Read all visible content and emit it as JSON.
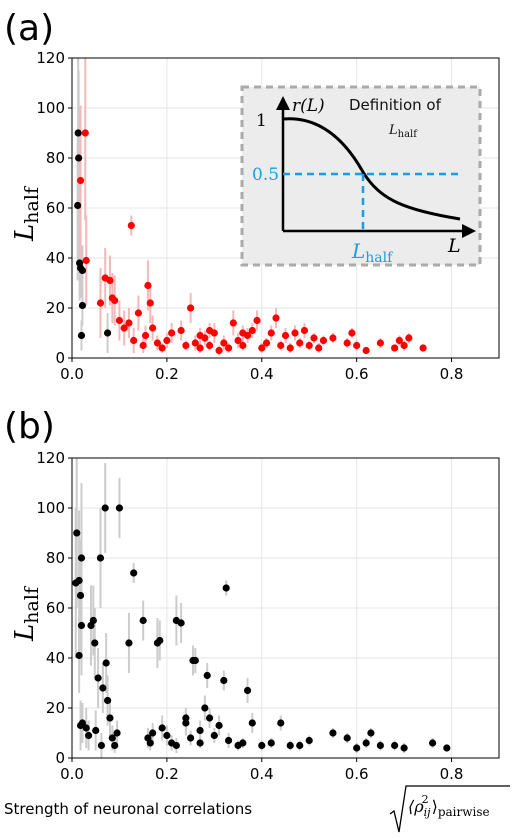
{
  "chart_data": [
    {
      "type": "scatter",
      "panel_label": "(a)",
      "xlim": [
        0,
        0.9
      ],
      "ylim": [
        0,
        120
      ],
      "xticks": [
        "0.0",
        "0.2",
        "0.4",
        "0.6",
        "0.8"
      ],
      "yticks": [
        "0",
        "20",
        "40",
        "60",
        "80",
        "100",
        "120"
      ],
      "ylabel_main": "L",
      "ylabel_sub": "half",
      "grid": true,
      "colors": {
        "red": "#ff0000",
        "black": "#000000",
        "err_red": "#f4b8b8",
        "err_black": "#cccccc"
      },
      "points_black": [
        {
          "x": 0.013,
          "y": 90,
          "e": 30
        },
        {
          "x": 0.014,
          "y": 80,
          "e": 35
        },
        {
          "x": 0.012,
          "y": 61,
          "e": 30
        },
        {
          "x": 0.016,
          "y": 38,
          "e": 15
        },
        {
          "x": 0.018,
          "y": 36,
          "e": 12
        },
        {
          "x": 0.022,
          "y": 35,
          "e": 10
        },
        {
          "x": 0.022,
          "y": 21,
          "e": 8
        },
        {
          "x": 0.02,
          "y": 9,
          "e": 6
        },
        {
          "x": 0.075,
          "y": 10,
          "e": 8
        }
      ],
      "points_red": [
        {
          "x": 0.028,
          "y": 90,
          "e": 35
        },
        {
          "x": 0.018,
          "y": 71,
          "e": 30
        },
        {
          "x": 0.03,
          "y": 39,
          "e": 18
        },
        {
          "x": 0.06,
          "y": 22,
          "e": 14
        },
        {
          "x": 0.07,
          "y": 32,
          "e": 12
        },
        {
          "x": 0.08,
          "y": 31,
          "e": 10
        },
        {
          "x": 0.085,
          "y": 24,
          "e": 10
        },
        {
          "x": 0.09,
          "y": 23,
          "e": 10
        },
        {
          "x": 0.1,
          "y": 15,
          "e": 8
        },
        {
          "x": 0.11,
          "y": 12,
          "e": 7
        },
        {
          "x": 0.12,
          "y": 14,
          "e": 6
        },
        {
          "x": 0.125,
          "y": 53,
          "e": 4
        },
        {
          "x": 0.13,
          "y": 7,
          "e": 5
        },
        {
          "x": 0.14,
          "y": 18,
          "e": 7
        },
        {
          "x": 0.15,
          "y": 5,
          "e": 3
        },
        {
          "x": 0.155,
          "y": 9,
          "e": 4
        },
        {
          "x": 0.16,
          "y": 29,
          "e": 10
        },
        {
          "x": 0.165,
          "y": 22,
          "e": 8
        },
        {
          "x": 0.17,
          "y": 12,
          "e": 5
        },
        {
          "x": 0.18,
          "y": 6,
          "e": 3
        },
        {
          "x": 0.19,
          "y": 4,
          "e": 2
        },
        {
          "x": 0.2,
          "y": 7,
          "e": 3
        },
        {
          "x": 0.21,
          "y": 10,
          "e": 4
        },
        {
          "x": 0.23,
          "y": 11,
          "e": 4
        },
        {
          "x": 0.24,
          "y": 5,
          "e": 2
        },
        {
          "x": 0.25,
          "y": 20,
          "e": 6
        },
        {
          "x": 0.26,
          "y": 6,
          "e": 3
        },
        {
          "x": 0.27,
          "y": 4,
          "e": 2
        },
        {
          "x": 0.28,
          "y": 8,
          "e": 3
        },
        {
          "x": 0.29,
          "y": 5,
          "e": 2
        },
        {
          "x": 0.3,
          "y": 10,
          "e": 4
        },
        {
          "x": 0.31,
          "y": 3,
          "e": 2
        },
        {
          "x": 0.32,
          "y": 6,
          "e": 3
        },
        {
          "x": 0.33,
          "y": 4,
          "e": 2
        },
        {
          "x": 0.34,
          "y": 14,
          "e": 5
        },
        {
          "x": 0.35,
          "y": 7,
          "e": 3
        },
        {
          "x": 0.36,
          "y": 5,
          "e": 2
        },
        {
          "x": 0.37,
          "y": 9,
          "e": 3
        },
        {
          "x": 0.38,
          "y": 11,
          "e": 3
        },
        {
          "x": 0.39,
          "y": 15,
          "e": 4
        },
        {
          "x": 0.4,
          "y": 4,
          "e": 2
        },
        {
          "x": 0.41,
          "y": 6,
          "e": 2
        },
        {
          "x": 0.42,
          "y": 10,
          "e": 3
        },
        {
          "x": 0.43,
          "y": 16,
          "e": 4
        },
        {
          "x": 0.44,
          "y": 5,
          "e": 2
        },
        {
          "x": 0.45,
          "y": 9,
          "e": 3
        },
        {
          "x": 0.46,
          "y": 4,
          "e": 2
        },
        {
          "x": 0.47,
          "y": 10,
          "e": 3
        },
        {
          "x": 0.48,
          "y": 6,
          "e": 2
        },
        {
          "x": 0.49,
          "y": 11,
          "e": 3
        },
        {
          "x": 0.5,
          "y": 5,
          "e": 2
        },
        {
          "x": 0.51,
          "y": 8,
          "e": 2
        },
        {
          "x": 0.52,
          "y": 4,
          "e": 2
        },
        {
          "x": 0.53,
          "y": 7,
          "e": 2
        },
        {
          "x": 0.55,
          "y": 8,
          "e": 2
        },
        {
          "x": 0.58,
          "y": 6,
          "e": 2
        },
        {
          "x": 0.6,
          "y": 5,
          "e": 2
        },
        {
          "x": 0.62,
          "y": 3,
          "e": 1
        },
        {
          "x": 0.65,
          "y": 6,
          "e": 2
        },
        {
          "x": 0.68,
          "y": 4,
          "e": 1
        },
        {
          "x": 0.69,
          "y": 7,
          "e": 2
        },
        {
          "x": 0.7,
          "y": 5,
          "e": 2
        },
        {
          "x": 0.71,
          "y": 8,
          "e": 2
        },
        {
          "x": 0.74,
          "y": 4,
          "e": 1
        },
        {
          "x": 0.59,
          "y": 10,
          "e": 2
        },
        {
          "x": 0.36,
          "y": 10,
          "e": 3
        },
        {
          "x": 0.27,
          "y": 9,
          "e": 3
        },
        {
          "x": 0.29,
          "y": 11,
          "e": 3
        }
      ],
      "inset": {
        "title": "Definition of",
        "title_sub_main": "L",
        "title_sub_sub": "half",
        "y_axis_label": "r(L)",
        "x_axis_label": "L",
        "level_one": "1",
        "level_half": "0.5",
        "marker_main": "L",
        "marker_sub": "half",
        "marker_color": "#1a9ce6"
      }
    },
    {
      "type": "scatter",
      "panel_label": "(b)",
      "xlim": [
        0,
        0.9
      ],
      "ylim": [
        0,
        120
      ],
      "xticks": [
        "0.0",
        "0.2",
        "0.4",
        "0.6",
        "0.8"
      ],
      "yticks": [
        "0",
        "20",
        "40",
        "60",
        "80",
        "100",
        "120"
      ],
      "ylabel_main": "L",
      "ylabel_sub": "half",
      "xlabel": "Strength of neuronal correlations",
      "xlabel_math_base": "⟨ρ",
      "xlabel_math_sub": "ij",
      "xlabel_math_sup": "2",
      "xlabel_math_close": "⟩",
      "xlabel_math_suffix": "pairwise",
      "grid": true,
      "points": [
        {
          "x": 0.01,
          "y": 90,
          "e": 30
        },
        {
          "x": 0.008,
          "y": 70,
          "e": 30
        },
        {
          "x": 0.015,
          "y": 71,
          "e": 28
        },
        {
          "x": 0.02,
          "y": 80,
          "e": 30
        },
        {
          "x": 0.018,
          "y": 65,
          "e": 22
        },
        {
          "x": 0.02,
          "y": 53,
          "e": 20
        },
        {
          "x": 0.015,
          "y": 41,
          "e": 15
        },
        {
          "x": 0.018,
          "y": 13,
          "e": 10
        },
        {
          "x": 0.022,
          "y": 14,
          "e": 8
        },
        {
          "x": 0.03,
          "y": 12,
          "e": 8
        },
        {
          "x": 0.035,
          "y": 9,
          "e": 6
        },
        {
          "x": 0.04,
          "y": 53,
          "e": 16
        },
        {
          "x": 0.045,
          "y": 55,
          "e": 14
        },
        {
          "x": 0.048,
          "y": 46,
          "e": 14
        },
        {
          "x": 0.05,
          "y": 11,
          "e": 8
        },
        {
          "x": 0.055,
          "y": 32,
          "e": 12
        },
        {
          "x": 0.06,
          "y": 80,
          "e": 20
        },
        {
          "x": 0.062,
          "y": 5,
          "e": 5
        },
        {
          "x": 0.065,
          "y": 28,
          "e": 10
        },
        {
          "x": 0.07,
          "y": 100,
          "e": 18
        },
        {
          "x": 0.072,
          "y": 38,
          "e": 12
        },
        {
          "x": 0.075,
          "y": 23,
          "e": 10
        },
        {
          "x": 0.08,
          "y": 16,
          "e": 8
        },
        {
          "x": 0.085,
          "y": 8,
          "e": 5
        },
        {
          "x": 0.09,
          "y": 5,
          "e": 3
        },
        {
          "x": 0.095,
          "y": 10,
          "e": 5
        },
        {
          "x": 0.1,
          "y": 100,
          "e": 12
        },
        {
          "x": 0.12,
          "y": 46,
          "e": 12
        },
        {
          "x": 0.13,
          "y": 74,
          "e": 4
        },
        {
          "x": 0.15,
          "y": 55,
          "e": 8
        },
        {
          "x": 0.16,
          "y": 8,
          "e": 4
        },
        {
          "x": 0.165,
          "y": 6,
          "e": 3
        },
        {
          "x": 0.17,
          "y": 10,
          "e": 4
        },
        {
          "x": 0.18,
          "y": 46,
          "e": 10
        },
        {
          "x": 0.185,
          "y": 47,
          "e": 8
        },
        {
          "x": 0.19,
          "y": 12,
          "e": 5
        },
        {
          "x": 0.2,
          "y": 9,
          "e": 4
        },
        {
          "x": 0.21,
          "y": 6,
          "e": 3
        },
        {
          "x": 0.22,
          "y": 55,
          "e": 10
        },
        {
          "x": 0.23,
          "y": 54,
          "e": 8
        },
        {
          "x": 0.24,
          "y": 14,
          "e": 5
        },
        {
          "x": 0.25,
          "y": 8,
          "e": 3
        },
        {
          "x": 0.255,
          "y": 39,
          "e": 6
        },
        {
          "x": 0.26,
          "y": 39,
          "e": 5
        },
        {
          "x": 0.27,
          "y": 11,
          "e": 4
        },
        {
          "x": 0.28,
          "y": 20,
          "e": 5
        },
        {
          "x": 0.285,
          "y": 33,
          "e": 5
        },
        {
          "x": 0.29,
          "y": 16,
          "e": 4
        },
        {
          "x": 0.3,
          "y": 9,
          "e": 3
        },
        {
          "x": 0.31,
          "y": 13,
          "e": 4
        },
        {
          "x": 0.32,
          "y": 31,
          "e": 4
        },
        {
          "x": 0.325,
          "y": 68,
          "e": 3
        },
        {
          "x": 0.33,
          "y": 7,
          "e": 3
        },
        {
          "x": 0.35,
          "y": 5,
          "e": 2
        },
        {
          "x": 0.36,
          "y": 6,
          "e": 2
        },
        {
          "x": 0.37,
          "y": 27,
          "e": 5
        },
        {
          "x": 0.38,
          "y": 14,
          "e": 4
        },
        {
          "x": 0.4,
          "y": 5,
          "e": 2
        },
        {
          "x": 0.42,
          "y": 6,
          "e": 2
        },
        {
          "x": 0.44,
          "y": 14,
          "e": 3
        },
        {
          "x": 0.46,
          "y": 5,
          "e": 2
        },
        {
          "x": 0.48,
          "y": 5,
          "e": 2
        },
        {
          "x": 0.5,
          "y": 7,
          "e": 2
        },
        {
          "x": 0.55,
          "y": 10,
          "e": 2
        },
        {
          "x": 0.58,
          "y": 8,
          "e": 2
        },
        {
          "x": 0.6,
          "y": 4,
          "e": 2
        },
        {
          "x": 0.62,
          "y": 6,
          "e": 2
        },
        {
          "x": 0.63,
          "y": 10,
          "e": 2
        },
        {
          "x": 0.65,
          "y": 5,
          "e": 2
        },
        {
          "x": 0.68,
          "y": 5,
          "e": 2
        },
        {
          "x": 0.7,
          "y": 4,
          "e": 2
        },
        {
          "x": 0.76,
          "y": 6,
          "e": 2
        },
        {
          "x": 0.79,
          "y": 4,
          "e": 1
        },
        {
          "x": 0.24,
          "y": 16,
          "e": 4
        },
        {
          "x": 0.27,
          "y": 6,
          "e": 2
        },
        {
          "x": 0.22,
          "y": 5,
          "e": 3
        }
      ]
    }
  ]
}
